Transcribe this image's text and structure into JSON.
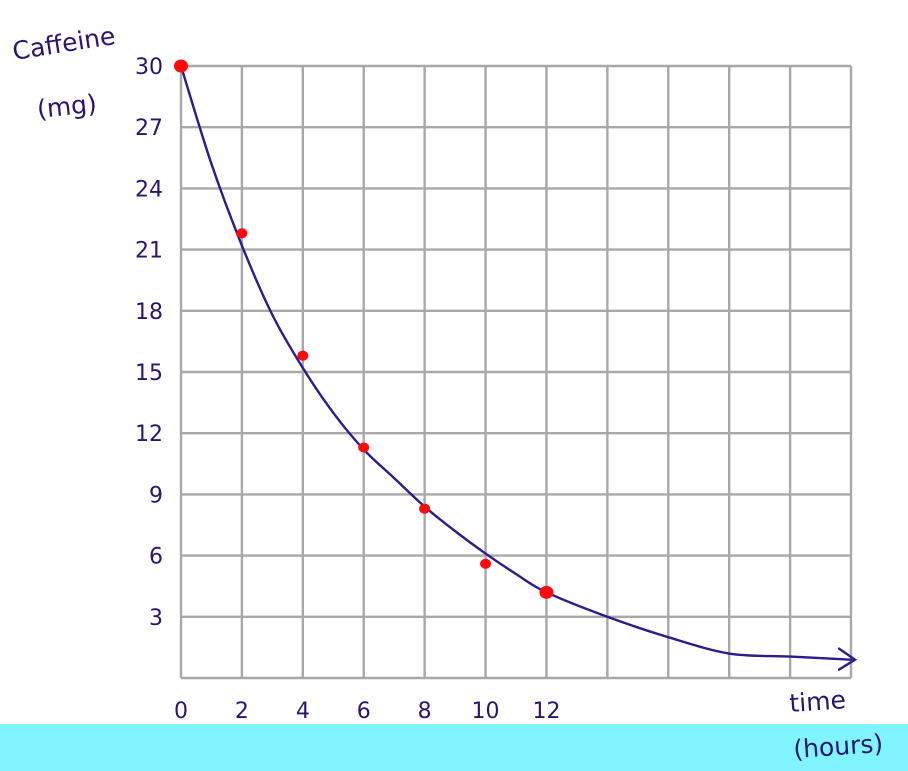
{
  "chart_data": {
    "type": "scatter",
    "ylabel": "Caffeine",
    "ylabel_unit": "(mg)",
    "xlabel": "time",
    "xlabel_unit": "(hours)",
    "x_ticks": [
      "0",
      "2",
      "4",
      "6",
      "8",
      "10",
      "12"
    ],
    "y_ticks": [
      "3",
      "6",
      "9",
      "12",
      "15",
      "18",
      "21",
      "24",
      "27",
      "30"
    ],
    "xlim": [
      0,
      22
    ],
    "ylim": [
      0,
      30
    ],
    "grid": true,
    "series": [
      {
        "kind": "points",
        "x": [
          0,
          2,
          4,
          6,
          8,
          10,
          12
        ],
        "y": [
          30,
          21.8,
          15.8,
          11.3,
          8.3,
          5.6,
          4.2
        ]
      },
      {
        "kind": "curve",
        "x": [
          0,
          1,
          2,
          3,
          4,
          5,
          6,
          7,
          8,
          9,
          10,
          11,
          12,
          14,
          16,
          18,
          20,
          22
        ],
        "y": [
          30,
          25.2,
          21.2,
          17.8,
          15.2,
          13.0,
          11.2,
          9.8,
          8.4,
          7.2,
          6.1,
          5.1,
          4.2,
          3.0,
          2.0,
          1.2,
          1.05,
          0.9
        ]
      }
    ],
    "colors": {
      "points": "#ff0a0a",
      "curve": "#2e1a8a",
      "ink": "#2a1470",
      "grid": "#a8a8a8",
      "band": "#80f4ff"
    }
  }
}
